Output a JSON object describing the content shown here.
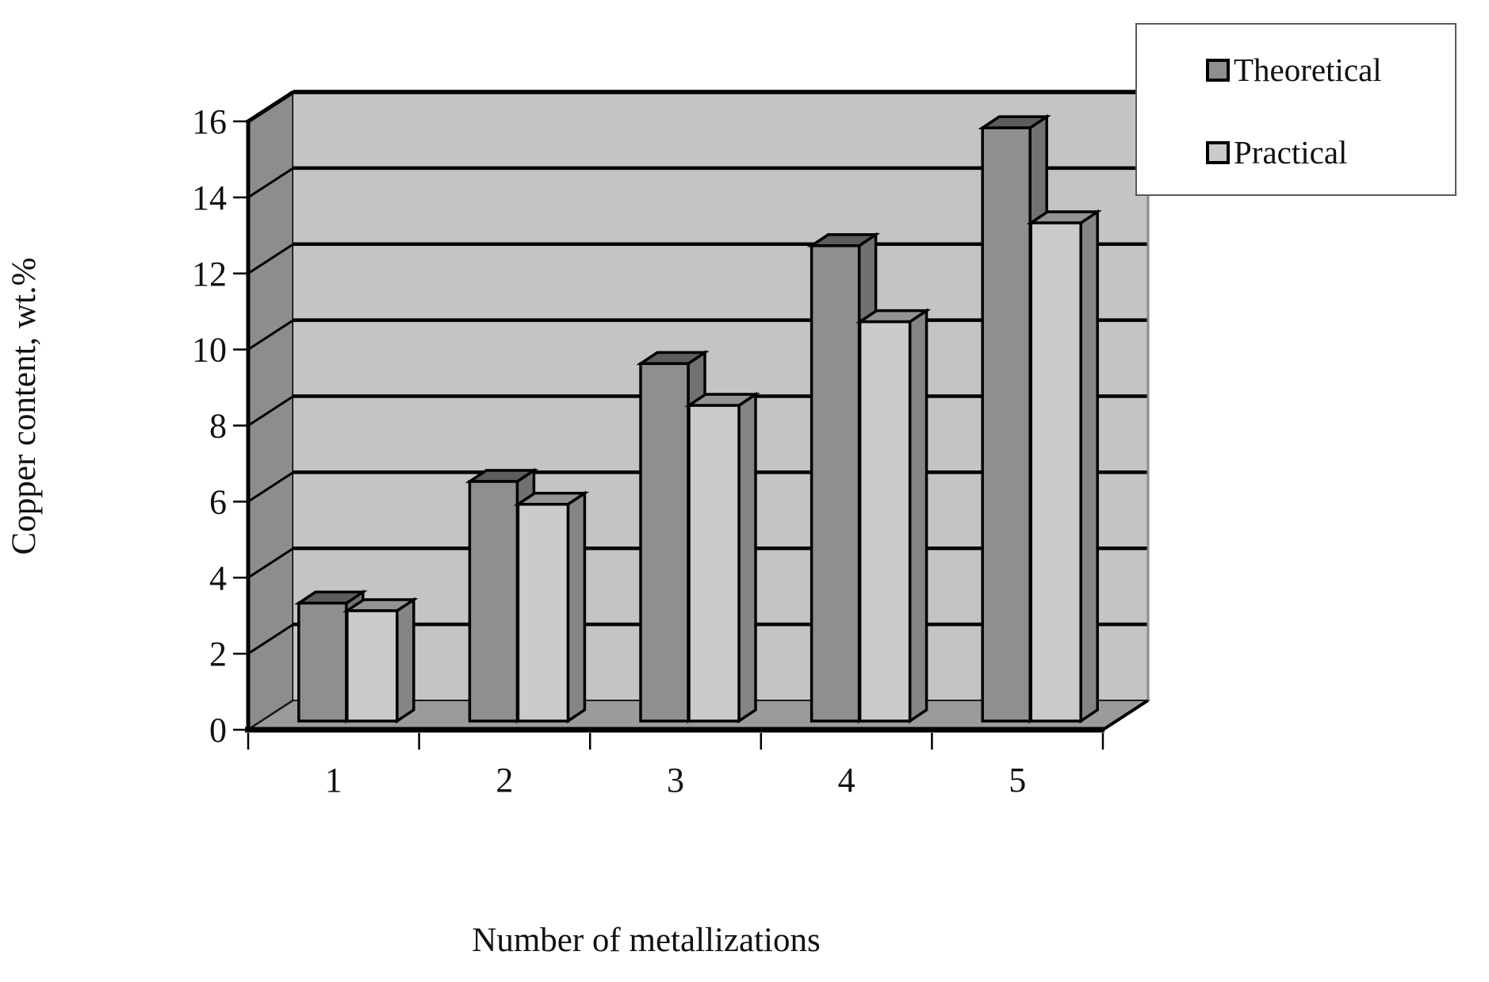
{
  "chart_data": {
    "type": "bar",
    "style": "3d-clustered-column",
    "title": "",
    "xlabel": "Number of metallizations",
    "ylabel": "Copper content, wt.%",
    "categories": [
      "1",
      "2",
      "3",
      "4",
      "5"
    ],
    "series": [
      {
        "name": "Theoretical",
        "values": [
          3.1,
          6.3,
          9.4,
          12.5,
          15.6
        ],
        "color": "#8f8f8f"
      },
      {
        "name": "Practical",
        "values": [
          2.9,
          5.7,
          8.3,
          10.5,
          13.1
        ],
        "color": "#cbcbcb"
      }
    ],
    "ylim": [
      0,
      16
    ],
    "yticks": [
      0,
      2,
      4,
      6,
      8,
      10,
      12,
      14,
      16
    ],
    "grid": true,
    "legend_position": "top-right"
  },
  "palette": {
    "back_wall": "#c4c4c4",
    "side_wall": "#8d8d8d",
    "floor": "#9b9b9b",
    "wall_right_edge": "#8a8a8a",
    "outline": "#000000",
    "theoretical_front": "#8f8f8f",
    "theoretical_top": "#5d5d5d",
    "theoretical_side": "#717171",
    "practical_front": "#cbcbcb",
    "practical_top": "#939393",
    "practical_side": "#858585",
    "legend_border": "#595959",
    "legend_background": "#ffffff"
  }
}
